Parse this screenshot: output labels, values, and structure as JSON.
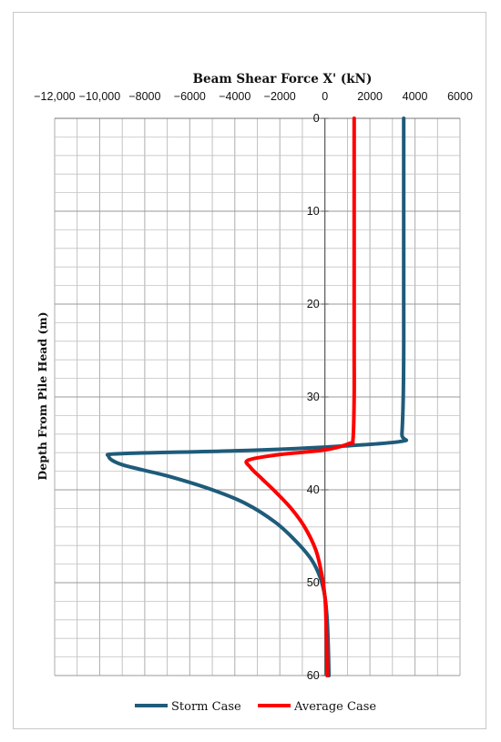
{
  "chart_data": {
    "type": "line",
    "title": "Beam Shear Force X' (kN)",
    "xlabel": "Beam Shear Force X' (kN)",
    "ylabel": "Depth From Pile Head (m)",
    "xlim": [
      -12000,
      6000
    ],
    "ylim": [
      0,
      60
    ],
    "y_inverted": true,
    "x_ticks": [
      -12000,
      -10000,
      -8000,
      -6000,
      -4000,
      -2000,
      0,
      2000,
      4000,
      6000
    ],
    "x_tick_labels": [
      "−12,000",
      "−10,000",
      "−8000",
      "−6000",
      "−4000",
      "−2000",
      "0",
      "2000",
      "4000",
      "6000"
    ],
    "y_ticks": [
      0,
      10,
      20,
      30,
      40,
      50,
      60
    ],
    "y_tick_labels": [
      "0",
      "10",
      "20",
      "30",
      "40",
      "50",
      "60"
    ],
    "x_axis_position": "top",
    "y_axis_at_x": 0,
    "grid": true,
    "legend_position": "bottom",
    "series": [
      {
        "name": "Storm Case",
        "color": "#1f5b7a",
        "points": [
          [
            3500,
            0
          ],
          [
            3500,
            10
          ],
          [
            3500,
            20
          ],
          [
            3500,
            25
          ],
          [
            3480,
            30
          ],
          [
            3420,
            34
          ],
          [
            3350,
            34.8
          ],
          [
            0,
            35.4
          ],
          [
            -4000,
            35.8
          ],
          [
            -9000,
            36.1
          ],
          [
            -9600,
            36.4
          ],
          [
            -9000,
            37.3
          ],
          [
            -7000,
            38.5
          ],
          [
            -5000,
            40
          ],
          [
            -3500,
            41.5
          ],
          [
            -2200,
            43.5
          ],
          [
            -1300,
            45.5
          ],
          [
            -600,
            47.5
          ],
          [
            -200,
            49.5
          ],
          [
            0,
            51.5
          ],
          [
            100,
            54
          ],
          [
            150,
            57
          ],
          [
            180,
            60
          ]
        ]
      },
      {
        "name": "Average Case",
        "color": "#ff0000",
        "points": [
          [
            1300,
            0
          ],
          [
            1300,
            10
          ],
          [
            1300,
            20
          ],
          [
            1300,
            25
          ],
          [
            1300,
            30
          ],
          [
            1250,
            34.5
          ],
          [
            1100,
            35
          ],
          [
            0,
            35.7
          ],
          [
            -2000,
            36.2
          ],
          [
            -3400,
            36.8
          ],
          [
            -3300,
            37.6
          ],
          [
            -2800,
            38.8
          ],
          [
            -2200,
            40.2
          ],
          [
            -1500,
            42
          ],
          [
            -900,
            44
          ],
          [
            -400,
            46.5
          ],
          [
            -150,
            49
          ],
          [
            0,
            51.5
          ],
          [
            50,
            54
          ],
          [
            80,
            57
          ],
          [
            100,
            60
          ]
        ]
      }
    ]
  }
}
